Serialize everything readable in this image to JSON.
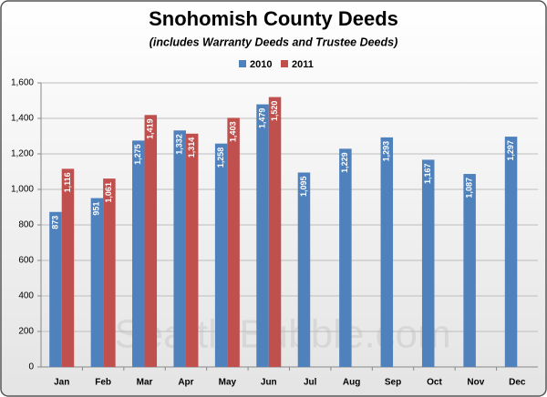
{
  "chart_data": {
    "type": "bar",
    "title": "Snohomish County Deeds",
    "subtitle": "(includes Warranty Deeds and Trustee Deeds)",
    "watermark": "SeattleBubble.com",
    "categories": [
      "Jan",
      "Feb",
      "Mar",
      "Apr",
      "May",
      "Jun",
      "Jul",
      "Aug",
      "Sep",
      "Oct",
      "Nov",
      "Dec"
    ],
    "series": [
      {
        "name": "2010",
        "color": "#4f81bd",
        "values": [
          873,
          951,
          1275,
          1332,
          1258,
          1479,
          1095,
          1229,
          1293,
          1167,
          1087,
          1297
        ],
        "value_labels": [
          "873",
          "951",
          "1,275",
          "1,332",
          "1,258",
          "1,479",
          "1,095",
          "1,229",
          "1,293",
          "1,167",
          "1,087",
          "1,297"
        ]
      },
      {
        "name": "2011",
        "color": "#c0504d",
        "values": [
          1116,
          1061,
          1419,
          1314,
          1403,
          1520,
          null,
          null,
          null,
          null,
          null,
          null
        ],
        "value_labels": [
          "1,116",
          "1,061",
          "1,419",
          "1,314",
          "1,403",
          "1,520",
          null,
          null,
          null,
          null,
          null,
          null
        ]
      }
    ],
    "ylim": [
      0,
      1600
    ],
    "yticks": [
      0,
      200,
      400,
      600,
      800,
      {
        "value": 1000,
        "label": "1,000"
      },
      {
        "value": 1200,
        "label": "1,200"
      },
      {
        "value": 1400,
        "label": "1,400"
      },
      {
        "value": 1600,
        "label": "1,600"
      }
    ],
    "grid": true,
    "legend": "top"
  }
}
